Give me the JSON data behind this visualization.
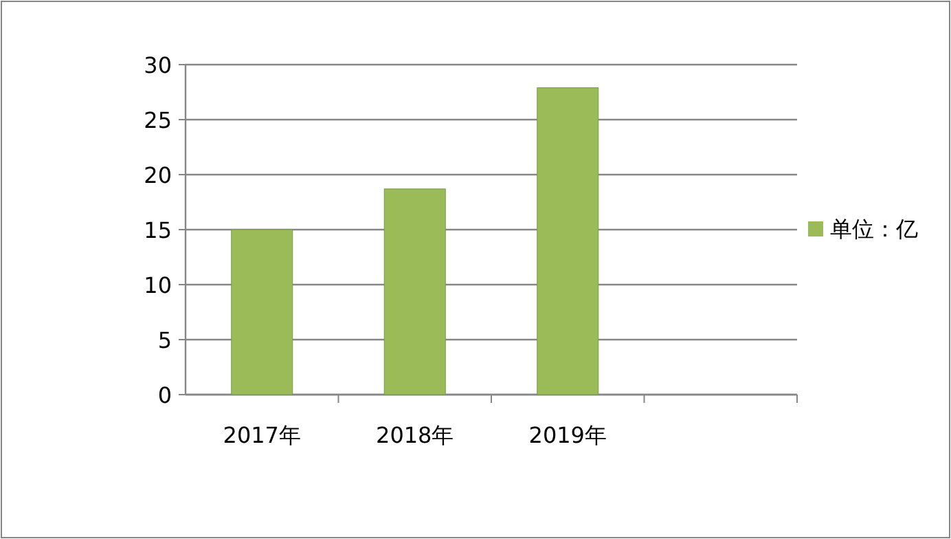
{
  "chart_data": {
    "type": "bar",
    "categories": [
      "2017年",
      "2018年",
      "2019年",
      null
    ],
    "series": [
      {
        "name": "单位：亿",
        "color": "#9bbb59",
        "values": [
          15,
          18.7,
          27.9,
          null
        ]
      }
    ],
    "ylim": [
      0,
      30
    ],
    "yticks": [
      0,
      5,
      10,
      15,
      20,
      25,
      30
    ],
    "grid": "y",
    "legend": "right"
  }
}
